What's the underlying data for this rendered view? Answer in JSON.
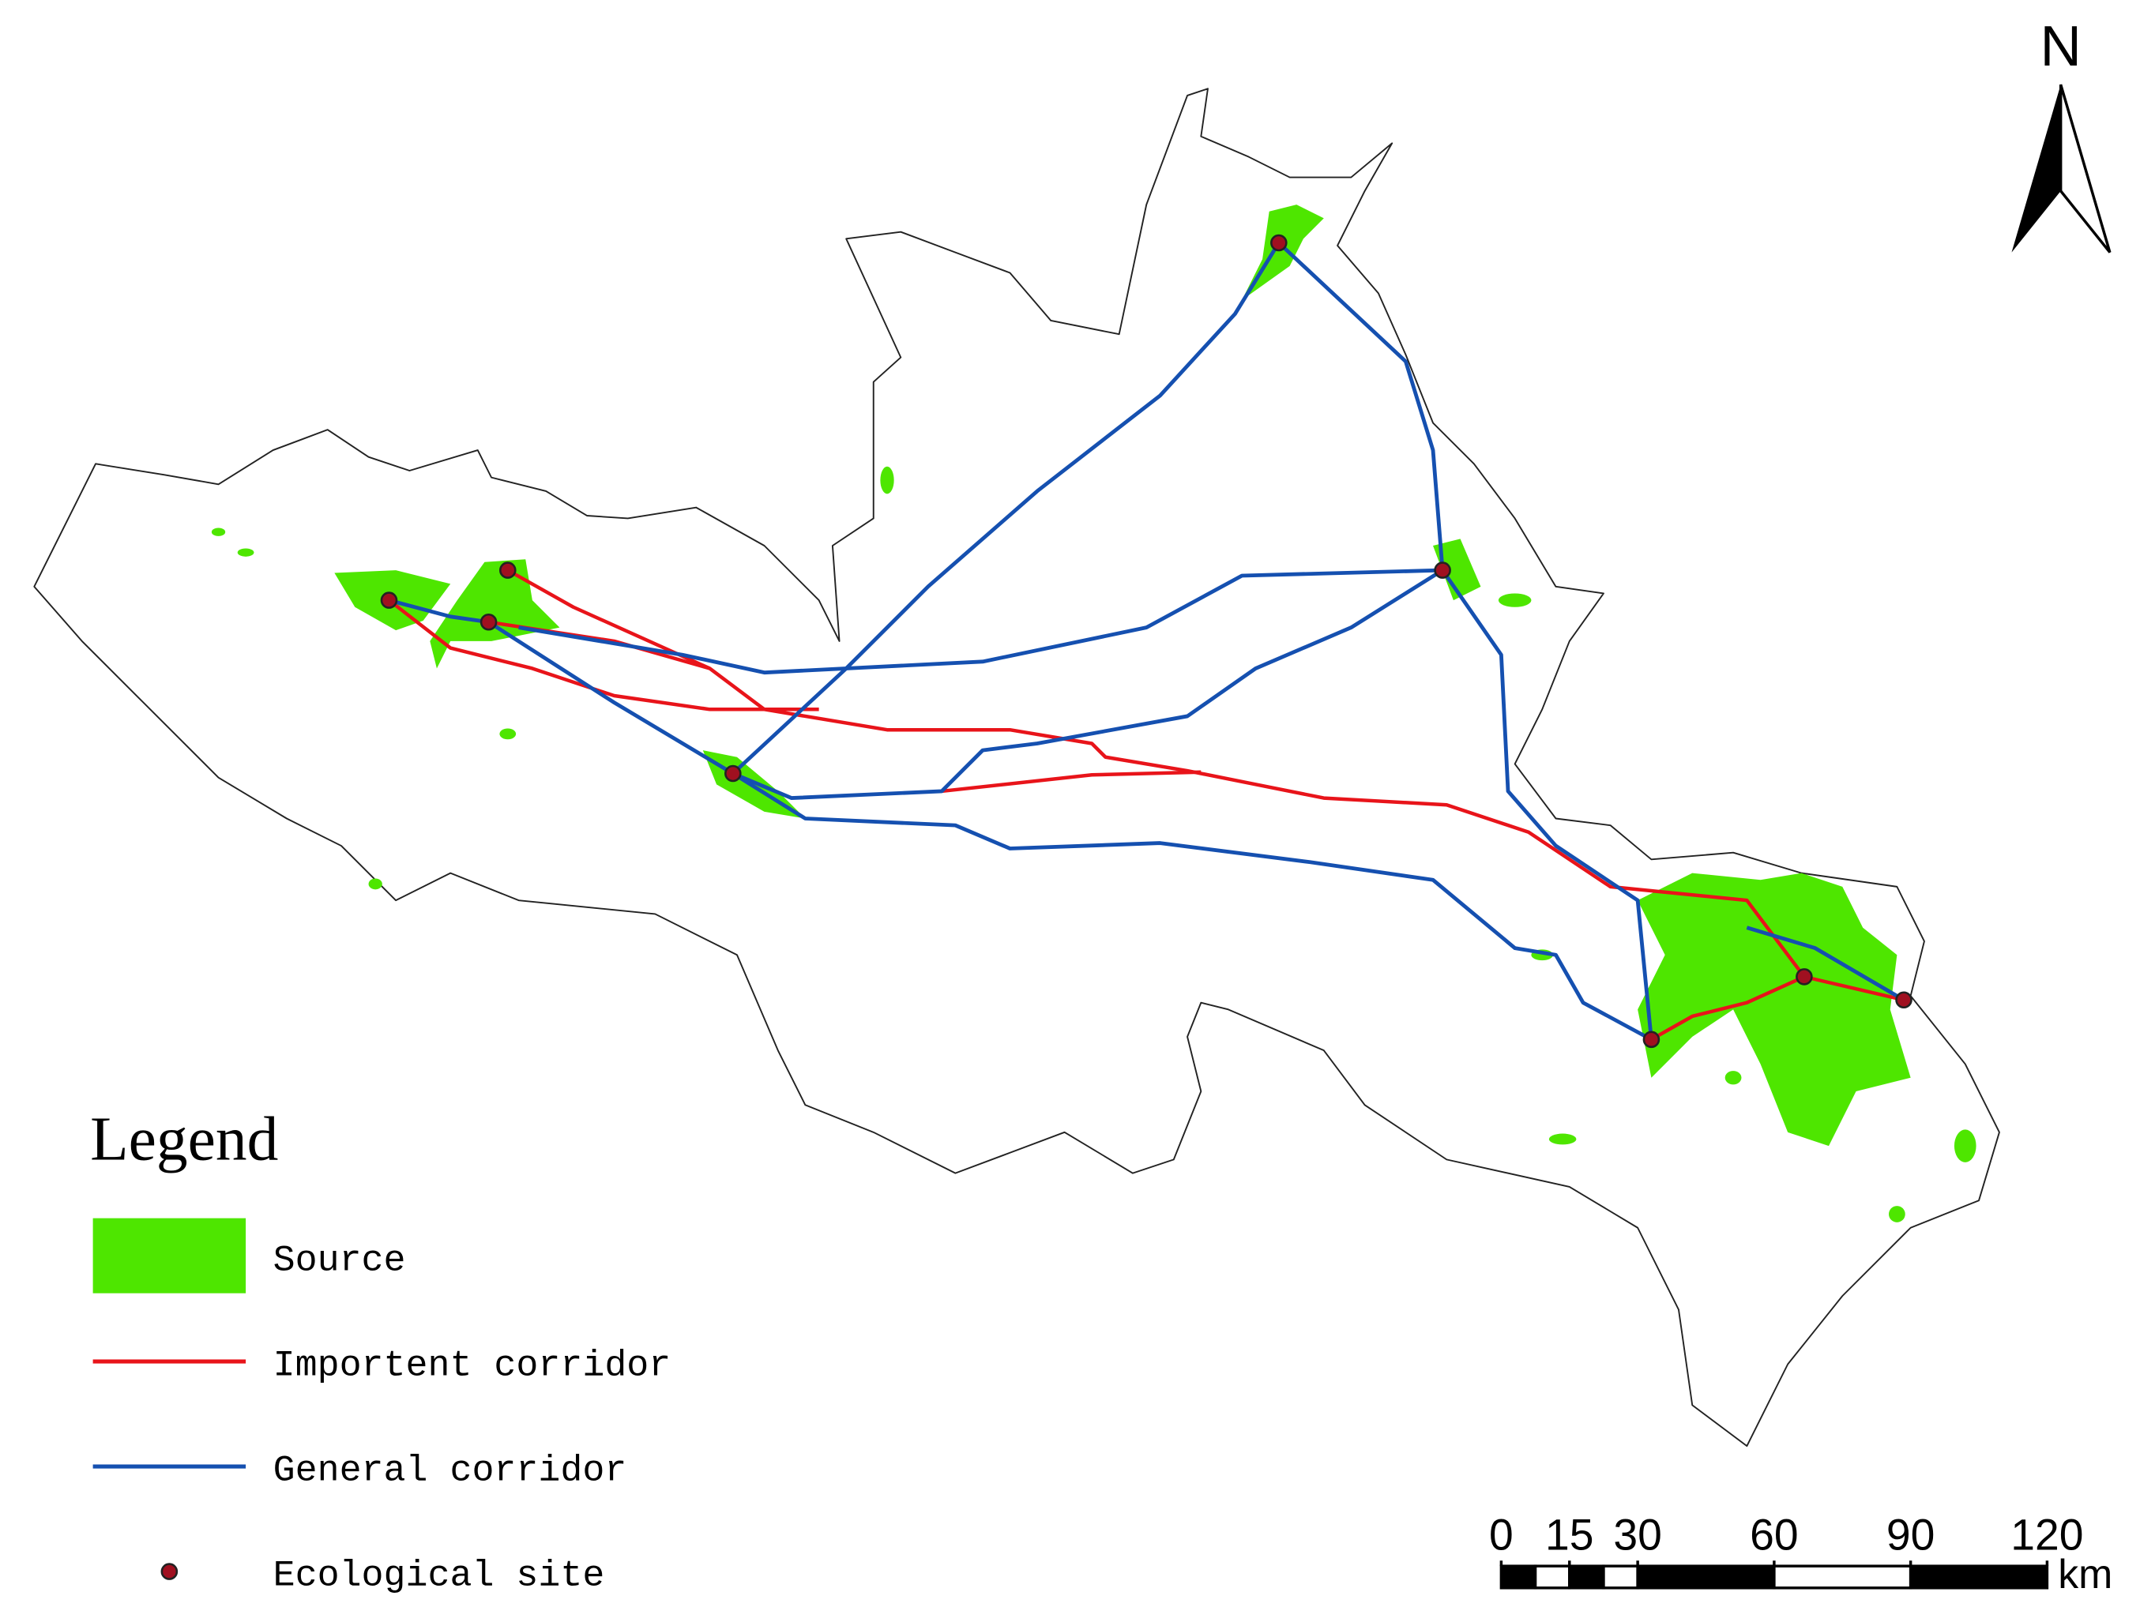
{
  "north_arrow": {
    "label": "N"
  },
  "legend": {
    "title": "Legend",
    "items": [
      "Source",
      "Importent corridor",
      "General corridor",
      "Ecological site"
    ]
  },
  "scale_bar": {
    "ticks": [
      0,
      15,
      30,
      60,
      90,
      120
    ],
    "unit": "km"
  }
}
